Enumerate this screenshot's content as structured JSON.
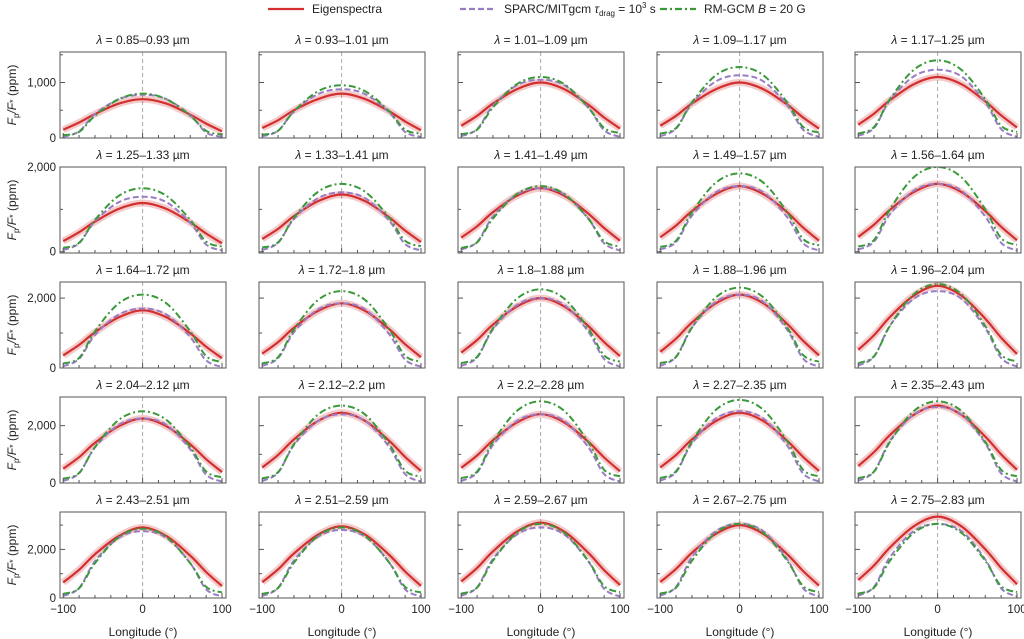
{
  "chart_data": {
    "type": "line",
    "legend": {
      "placement": "top",
      "entries": [
        {
          "key": "eigen",
          "parts": [
            "Eigenspectra"
          ],
          "color": "#d32f2f",
          "style": "solid"
        },
        {
          "key": "sparc",
          "parts": [
            "SPARC/MITgcm ",
            "τ",
            "drag",
            " = 10",
            "3",
            " s"
          ],
          "color": "#9a7cc6",
          "style": "dashed"
        },
        {
          "key": "rm",
          "parts": [
            "RM-GCM ",
            "B",
            " = 20 G"
          ],
          "color": "#3a9a3a",
          "style": "dash-dot"
        }
      ]
    },
    "xlabel": "Longitude (°)",
    "ylabel": "Fp/F* (ppm)",
    "ylabel_parts": [
      "F",
      "p",
      "/F",
      "*",
      " (ppm)"
    ],
    "xlim": [
      -104,
      105
    ],
    "xticks": [
      -100,
      0,
      100
    ],
    "x": [
      -100,
      -80,
      -60,
      -30,
      0,
      30,
      60,
      80,
      100
    ],
    "row_ylim": [
      [
        0,
        1550
      ],
      [
        -30,
        2000
      ],
      [
        0,
        2460
      ],
      [
        0,
        3000
      ],
      [
        0,
        3540
      ]
    ],
    "row_yticks": [
      [
        0,
        1000
      ],
      [
        0,
        2000
      ],
      [
        0,
        2000
      ],
      [
        0,
        2000
      ],
      [
        0,
        2000
      ]
    ],
    "row_ytick_labels": [
      [
        "0",
        "1,000"
      ],
      [
        "0",
        "2,000"
      ],
      [
        "0",
        "2,000"
      ],
      [
        "0",
        "2,000"
      ],
      [
        "0",
        "2,000"
      ]
    ],
    "xtick_labels": [
      "−100",
      "0",
      "100"
    ],
    "panels": [
      {
        "title": "0.85–0.93 µm",
        "eigen": [
          150,
          280,
          430,
          620,
          700,
          620,
          420,
          260,
          120
        ],
        "sparc": [
          20,
          120,
          430,
          700,
          780,
          700,
          410,
          100,
          20
        ],
        "rm": [
          50,
          110,
          400,
          700,
          800,
          700,
          400,
          130,
          60
        ]
      },
      {
        "title": "0.93–1.01 µm",
        "eigen": [
          180,
          320,
          500,
          700,
          800,
          700,
          480,
          300,
          140
        ],
        "sparc": [
          30,
          130,
          480,
          790,
          880,
          790,
          460,
          110,
          20
        ],
        "rm": [
          60,
          130,
          480,
          840,
          950,
          840,
          480,
          150,
          80
        ]
      },
      {
        "title": "1.01–1.09 µm",
        "eigen": [
          220,
          400,
          620,
          880,
          1000,
          880,
          600,
          370,
          170
        ],
        "sparc": [
          30,
          160,
          580,
          950,
          1050,
          950,
          550,
          140,
          20
        ],
        "rm": [
          70,
          150,
          550,
          970,
          1100,
          970,
          550,
          180,
          90
        ]
      },
      {
        "title": "1.09–1.17 µm",
        "eigen": [
          220,
          400,
          620,
          880,
          1000,
          880,
          600,
          370,
          170
        ],
        "sparc": [
          30,
          170,
          620,
          1020,
          1130,
          1020,
          590,
          150,
          20
        ],
        "rm": [
          80,
          180,
          640,
          1130,
          1280,
          1130,
          640,
          200,
          100
        ]
      },
      {
        "title": "1.17–1.25 µm",
        "eigen": [
          240,
          440,
          680,
          970,
          1100,
          970,
          660,
          410,
          190
        ],
        "sparc": [
          40,
          180,
          680,
          1110,
          1230,
          1110,
          640,
          160,
          20
        ],
        "rm": [
          80,
          200,
          700,
          1230,
          1400,
          1230,
          700,
          220,
          110
        ]
      },
      {
        "title": "1.25–1.33 µm",
        "eigen": [
          250,
          460,
          710,
          1010,
          1150,
          1010,
          690,
          430,
          200
        ],
        "sparc": [
          40,
          200,
          720,
          1170,
          1300,
          1170,
          680,
          170,
          30
        ],
        "rm": [
          90,
          210,
          750,
          1320,
          1500,
          1320,
          750,
          240,
          120
        ]
      },
      {
        "title": "1.33–1.41 µm",
        "eigen": [
          300,
          540,
          840,
          1190,
          1350,
          1190,
          810,
          500,
          230
        ],
        "sparc": [
          40,
          210,
          770,
          1260,
          1400,
          1260,
          730,
          180,
          30
        ],
        "rm": [
          100,
          220,
          800,
          1410,
          1600,
          1410,
          800,
          260,
          130
        ]
      },
      {
        "title": "1.41–1.49 µm",
        "eigen": [
          330,
          600,
          930,
          1320,
          1500,
          1320,
          900,
          560,
          260
        ],
        "sparc": [
          50,
          230,
          830,
          1350,
          1500,
          1350,
          780,
          200,
          30
        ],
        "rm": [
          90,
          220,
          780,
          1360,
          1550,
          1360,
          780,
          250,
          120
        ]
      },
      {
        "title": "1.49–1.57 µm",
        "eigen": [
          340,
          620,
          960,
          1360,
          1550,
          1360,
          930,
          570,
          260
        ],
        "sparc": [
          50,
          230,
          850,
          1400,
          1550,
          1400,
          810,
          200,
          30
        ],
        "rm": [
          110,
          260,
          930,
          1630,
          1850,
          1630,
          930,
          300,
          150
        ]
      },
      {
        "title": "1.56–1.64 µm",
        "eigen": [
          350,
          640,
          990,
          1410,
          1600,
          1410,
          960,
          590,
          270
        ],
        "sparc": [
          50,
          240,
          880,
          1440,
          1600,
          1440,
          830,
          210,
          30
        ],
        "rm": [
          120,
          280,
          1000,
          1760,
          2000,
          1760,
          1000,
          320,
          160
        ]
      },
      {
        "title": "1.64–1.72 µm",
        "eigen": [
          360,
          660,
          1020,
          1450,
          1650,
          1450,
          990,
          610,
          280
        ],
        "sparc": [
          50,
          260,
          940,
          1530,
          1700,
          1530,
          880,
          220,
          30
        ],
        "rm": [
          130,
          290,
          1050,
          1850,
          2100,
          1850,
          1050,
          340,
          170
        ]
      },
      {
        "title": "1.72–1.8 µm",
        "eigen": [
          410,
          740,
          1150,
          1630,
          1850,
          1630,
          1110,
          680,
          310
        ],
        "sparc": [
          60,
          280,
          1020,
          1670,
          1850,
          1670,
          960,
          240,
          40
        ],
        "rm": [
          130,
          310,
          1100,
          1940,
          2200,
          1940,
          1100,
          350,
          180
        ]
      },
      {
        "title": "1.8–1.88 µm",
        "eigen": [
          440,
          800,
          1240,
          1760,
          2000,
          1760,
          1200,
          740,
          340
        ],
        "sparc": [
          60,
          300,
          1100,
          1800,
          2000,
          1800,
          1040,
          260,
          40
        ],
        "rm": [
          140,
          320,
          1130,
          1980,
          2250,
          1980,
          1130,
          360,
          180
        ]
      },
      {
        "title": "1.88–1.96 µm",
        "eigen": [
          460,
          840,
          1300,
          1850,
          2100,
          1850,
          1260,
          780,
          360
        ],
        "sparc": [
          60,
          320,
          1160,
          1890,
          2100,
          1890,
          1090,
          270,
          40
        ],
        "rm": [
          140,
          320,
          1150,
          2020,
          2300,
          2020,
          1150,
          370,
          180
        ]
      },
      {
        "title": "1.96–2.04 µm",
        "eigen": [
          520,
          940,
          1460,
          2070,
          2350,
          2070,
          1410,
          870,
          400
        ],
        "sparc": [
          70,
          330,
          1210,
          1980,
          2200,
          1980,
          1140,
          290,
          40
        ],
        "rm": [
          140,
          340,
          1200,
          2110,
          2400,
          2110,
          1200,
          380,
          190
        ]
      },
      {
        "title": "2.04–2.12 µm",
        "eigen": [
          500,
          900,
          1400,
          1980,
          2250,
          1980,
          1350,
          830,
          380
        ],
        "sparc": [
          70,
          340,
          1240,
          2030,
          2250,
          2030,
          1170,
          290,
          50
        ],
        "rm": [
          150,
          350,
          1250,
          2200,
          2500,
          2200,
          1250,
          400,
          200
        ]
      },
      {
        "title": "2.12–2.2 µm",
        "eigen": [
          540,
          980,
          1520,
          2160,
          2450,
          2160,
          1470,
          910,
          420
        ],
        "sparc": [
          70,
          360,
          1320,
          2160,
          2400,
          2160,
          1250,
          310,
          50
        ],
        "rm": [
          160,
          380,
          1350,
          2380,
          2700,
          2380,
          1350,
          430,
          220
        ]
      },
      {
        "title": "2.2–2.28 µm",
        "eigen": [
          530,
          960,
          1490,
          2110,
          2400,
          2110,
          1440,
          890,
          410
        ],
        "sparc": [
          70,
          360,
          1320,
          2160,
          2400,
          2160,
          1250,
          310,
          50
        ],
        "rm": [
          170,
          400,
          1430,
          2510,
          2850,
          2510,
          1430,
          460,
          230
        ]
      },
      {
        "title": "2.27–2.35 µm",
        "eigen": [
          540,
          980,
          1520,
          2160,
          2450,
          2160,
          1470,
          910,
          420
        ],
        "sparc": [
          80,
          380,
          1380,
          2250,
          2500,
          2250,
          1300,
          330,
          50
        ],
        "rm": [
          170,
          410,
          1450,
          2550,
          2900,
          2550,
          1450,
          460,
          230
        ]
      },
      {
        "title": "2.35–2.43 µm",
        "eigen": [
          590,
          1080,
          1670,
          2380,
          2700,
          2380,
          1620,
          1000,
          460
        ],
        "sparc": [
          80,
          400,
          1460,
          2390,
          2650,
          2390,
          1380,
          340,
          50
        ],
        "rm": [
          170,
          400,
          1430,
          2510,
          2850,
          2510,
          1430,
          460,
          230
        ]
      },
      {
        "title": "2.43–2.51 µm",
        "eigen": [
          640,
          1160,
          1800,
          2550,
          2900,
          2550,
          1740,
          1070,
          490
        ],
        "sparc": [
          80,
          410,
          1510,
          2480,
          2750,
          2480,
          1430,
          360,
          60
        ],
        "rm": [
          170,
          400,
          1430,
          2510,
          2850,
          2510,
          1430,
          460,
          230
        ]
      },
      {
        "title": "2.51–2.59 µm",
        "eigen": [
          650,
          1180,
          1830,
          2600,
          2950,
          2600,
          1770,
          1090,
          500
        ],
        "sparc": [
          80,
          420,
          1540,
          2520,
          2800,
          2520,
          1460,
          360,
          60
        ],
        "rm": [
          170,
          410,
          1450,
          2550,
          2900,
          2550,
          1450,
          460,
          230
        ]
      },
      {
        "title": "2.59–2.67 µm",
        "eigen": [
          680,
          1240,
          1920,
          2730,
          3100,
          2730,
          1860,
          1150,
          530
        ],
        "sparc": [
          90,
          440,
          1600,
          2610,
          2900,
          2610,
          1510,
          380,
          60
        ],
        "rm": [
          180,
          430,
          1530,
          2680,
          3050,
          2680,
          1530,
          490,
          240
        ]
      },
      {
        "title": "2.67–2.75 µm",
        "eigen": [
          660,
          1200,
          1860,
          2640,
          3000,
          2640,
          1800,
          1110,
          510
        ],
        "sparc": [
          90,
          460,
          1680,
          2750,
          3050,
          2750,
          1590,
          400,
          60
        ],
        "rm": [
          180,
          430,
          1530,
          2680,
          3050,
          2680,
          1530,
          490,
          240
        ]
      },
      {
        "title": "2.75–2.83 µm",
        "eigen": [
          740,
          1340,
          2080,
          2950,
          3350,
          2950,
          2010,
          1240,
          570
        ],
        "sparc": [
          90,
          460,
          1680,
          2750,
          3050,
          2750,
          1590,
          400,
          60
        ],
        "rm": [
          180,
          430,
          1530,
          2680,
          3050,
          2680,
          1530,
          490,
          240
        ]
      }
    ],
    "title_prefix": "λ = ",
    "grid": false
  }
}
